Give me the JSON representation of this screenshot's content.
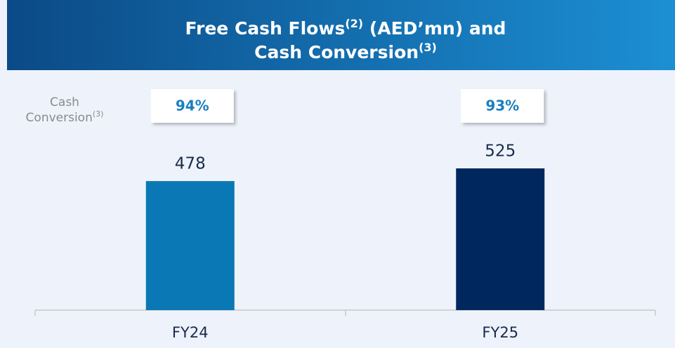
{
  "chart_data": {
    "type": "bar",
    "title": {
      "line1": "Free Cash Flows",
      "line1_note": "(2)",
      "line1_rest": " (AED’mn) and",
      "line2": "Cash Conversion",
      "line2_note": "(3)"
    },
    "categories": [
      "FY24",
      "FY25"
    ],
    "values": [
      478,
      525
    ],
    "colors": [
      "#0a78b4",
      "#00285e"
    ],
    "cash_conversion": {
      "label_line1": "Cash",
      "label_line2": "Conversion",
      "label_note": "(3)",
      "values": [
        94,
        93
      ],
      "value_labels": [
        "94%",
        "93%"
      ],
      "color": "#1a7fc0"
    }
  }
}
